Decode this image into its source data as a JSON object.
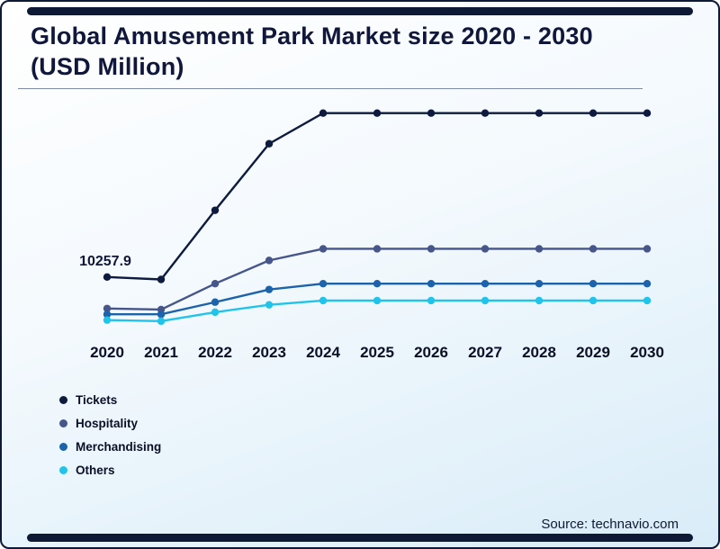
{
  "title": "Global Amusement Park Market size 2020 - 2030 (USD Million)",
  "source_text": "Source: technavio.com",
  "theme": {
    "border_color": "#0e1936",
    "title_color": "#10173a",
    "axis_label_color": "#0b1026",
    "background_start": "#ffffff",
    "background_end": "#d9ecf8"
  },
  "chart_data": {
    "type": "line",
    "title": "Global Amusement Park Market size 2020 - 2030 (USD Million)",
    "xlabel": "",
    "ylabel": "USD Million",
    "ylim": [
      0,
      45000
    ],
    "grid": false,
    "legend_position": "bottom-left",
    "x": [
      "2020",
      "2021",
      "2022",
      "2023",
      "2024",
      "2025",
      "2026",
      "2027",
      "2028",
      "2029",
      "2030"
    ],
    "series": [
      {
        "name": "Tickets",
        "color": "#0e1b3e",
        "values": [
          10257.9,
          9800,
          22900,
          35500,
          41300,
          41300,
          41300,
          41300,
          41300,
          41300,
          41300
        ]
      },
      {
        "name": "Hospitality",
        "color": "#46558a",
        "values": [
          4300,
          4100,
          9000,
          13400,
          15600,
          15600,
          15600,
          15600,
          15600,
          15600,
          15600
        ]
      },
      {
        "name": "Merchandising",
        "color": "#1d63ac",
        "values": [
          3200,
          3200,
          5500,
          7900,
          9000,
          9000,
          9000,
          9000,
          9000,
          9000,
          9000
        ]
      },
      {
        "name": "Others",
        "color": "#20c4ea",
        "values": [
          2100,
          1900,
          3600,
          5000,
          5800,
          5800,
          5800,
          5800,
          5800,
          5800,
          5800
        ]
      }
    ],
    "annotation": {
      "text": "10257.9",
      "series": "Tickets",
      "x": "2020"
    }
  }
}
